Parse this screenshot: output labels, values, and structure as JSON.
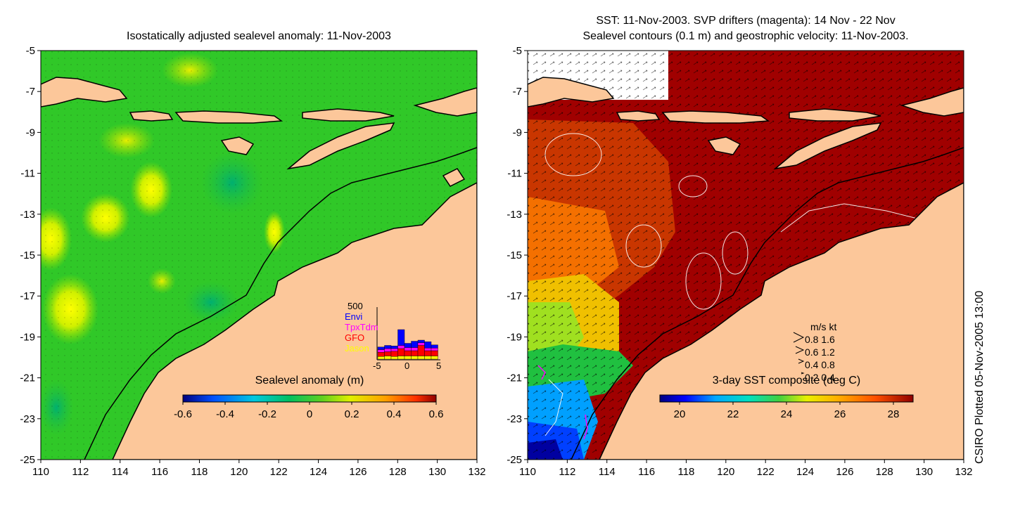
{
  "left_panel": {
    "title": "Isostatically adjusted sealevel anomaly: 11-Nov-2003",
    "colorbar": {
      "label": "Sealevel anomaly (m)",
      "ticks": [
        "-0.6",
        "-0.4",
        "-0.2",
        "0",
        "0.2",
        "0.4",
        "0.6"
      ],
      "colors": [
        "#00007f",
        "#0040ff",
        "#00c8ff",
        "#00d090",
        "#30c830",
        "#c8f000",
        "#ffc000",
        "#ff6000",
        "#a00000"
      ]
    },
    "inset": {
      "ymax_label": "500",
      "xticks": [
        "-5",
        "0",
        "5"
      ],
      "legend": [
        {
          "label": "Envi",
          "color": "#0000ff"
        },
        {
          "label": "TpxTdm",
          "color": "#ff00ff"
        },
        {
          "label": "GFO",
          "color": "#ff0000"
        },
        {
          "label": "Jason",
          "color": "#ffff00"
        }
      ],
      "bars": [
        {
          "envi": 0.05,
          "tpx": 0.05,
          "gfo": 0.08,
          "jason": 0.05
        },
        {
          "envi": 0.06,
          "tpx": 0.06,
          "gfo": 0.08,
          "jason": 0.06
        },
        {
          "envi": 0.05,
          "tpx": 0.05,
          "gfo": 0.1,
          "jason": 0.05
        },
        {
          "envi": 0.3,
          "tpx": 0.06,
          "gfo": 0.14,
          "jason": 0.06
        },
        {
          "envi": 0.08,
          "tpx": 0.06,
          "gfo": 0.1,
          "jason": 0.06
        },
        {
          "envi": 0.12,
          "tpx": 0.06,
          "gfo": 0.1,
          "jason": 0.06
        },
        {
          "envi": 0.05,
          "tpx": 0.05,
          "gfo": 0.2,
          "jason": 0.06
        },
        {
          "envi": 0.12,
          "tpx": 0.05,
          "gfo": 0.1,
          "jason": 0.06
        },
        {
          "envi": 0.06,
          "tpx": 0.05,
          "gfo": 0.1,
          "jason": 0.06
        }
      ]
    }
  },
  "right_panel": {
    "title_line1": "SST: 11-Nov-2003. SVP drifters (magenta): 14 Nov - 22 Nov",
    "title_line2": "Sealevel contours (0.1 m) and geostrophic velocity: 11-Nov-2003.",
    "colorbar": {
      "label": "3-day SST composite (deg C)",
      "ticks": [
        "20",
        "22",
        "24",
        "26",
        "28"
      ],
      "colors": [
        "#00007f",
        "#0000ff",
        "#00a0ff",
        "#00e0e0",
        "#40e080",
        "#e0f000",
        "#ffa000",
        "#ff4000",
        "#a00000"
      ]
    },
    "velocity_legend": {
      "headers": [
        "m/s",
        "kt"
      ],
      "rows": [
        [
          "0.8",
          "1.6"
        ],
        [
          "0.6",
          "1.2"
        ],
        [
          "0.4",
          "0.8"
        ],
        [
          "0.2",
          "0.4"
        ]
      ]
    }
  },
  "axes": {
    "lon_ticks": [
      "110",
      "112",
      "114",
      "116",
      "118",
      "120",
      "122",
      "124",
      "126",
      "128",
      "130",
      "132"
    ],
    "lat_ticks": [
      "-5",
      "-7",
      "-9",
      "-11",
      "-13",
      "-15",
      "-17",
      "-19",
      "-21",
      "-23",
      "-25"
    ]
  },
  "credit": "CSIRO Plotted 05-Nov-2005 13:00"
}
